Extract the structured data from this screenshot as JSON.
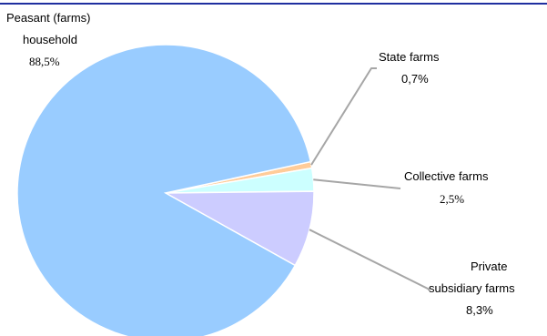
{
  "colors": {
    "rule": "#1f2fa0",
    "leader": "#a6a6a6",
    "slice_edge": "#ffffff"
  },
  "chart_data": {
    "type": "pie",
    "title": "",
    "slices": [
      {
        "name_lines": [
          "Peasant  (farms)",
          "household"
        ],
        "value_label": "88,5%",
        "value": 88.5,
        "color": "#99ccff",
        "key": "peasant"
      },
      {
        "name_lines": [
          "State farms"
        ],
        "value_label": "0,7%",
        "value": 0.7,
        "color": "#ffcc99",
        "key": "state"
      },
      {
        "name_lines": [
          "Collective farms"
        ],
        "value_label": "2,5%",
        "value": 2.5,
        "color": "#ccffff",
        "key": "collective"
      },
      {
        "name_lines": [
          "Private",
          "subsidiary farms"
        ],
        "value_label": "8,3%",
        "value": 8.3,
        "color": "#ccccff",
        "key": "private"
      }
    ],
    "legend": "none",
    "labels_outside": true
  }
}
